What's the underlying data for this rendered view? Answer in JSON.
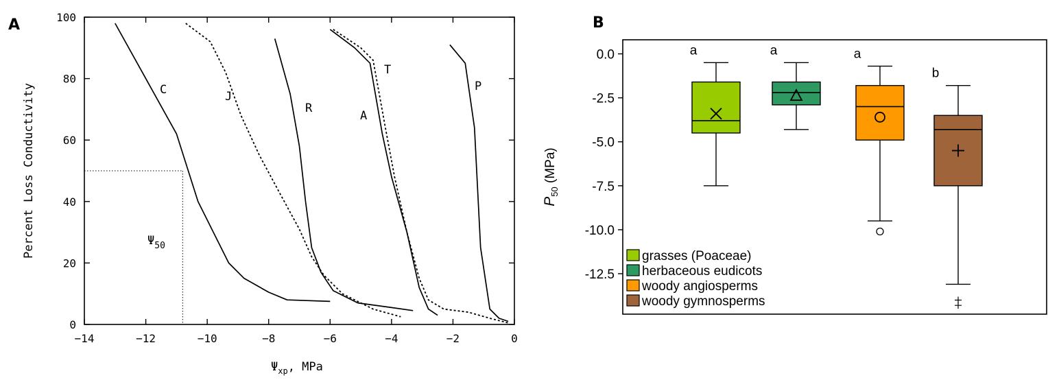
{
  "chart_data": [
    {
      "panel": "A",
      "type": "line",
      "xlabel": "Ψ",
      "xlabel_sub": "xp",
      "xlabel_suffix": ", MPa",
      "ylabel": "Percent Loss Conductivity",
      "xlim": [
        -14,
        0
      ],
      "ylim": [
        0,
        100
      ],
      "xticks": [
        -14,
        -12,
        -10,
        -8,
        -6,
        -4,
        -2,
        0
      ],
      "yticks": [
        0,
        20,
        40,
        60,
        80,
        100
      ],
      "annotation": {
        "text": "Ψ",
        "sub": "50",
        "x": -10.8,
        "y": 50
      },
      "series": [
        {
          "name": "C",
          "style": "solid",
          "x": [
            -13.0,
            -12.0,
            -11.0,
            -10.3,
            -9.8,
            -9.3,
            -8.8,
            -8.0,
            -7.4,
            -6.0
          ],
          "y": [
            98,
            80,
            62,
            40,
            30,
            20,
            15,
            10.5,
            8,
            7.5
          ]
        },
        {
          "name": "J",
          "style": "dotted",
          "x": [
            -10.7,
            -9.9,
            -9.4,
            -8.9,
            -8.3,
            -7.6,
            -7.0,
            -6.6,
            -6.2,
            -5.6,
            -4.6,
            -3.7
          ],
          "y": [
            98,
            92,
            82,
            68,
            55,
            42,
            31,
            22,
            16,
            10,
            5,
            2.5
          ]
        },
        {
          "name": "R",
          "style": "solid",
          "x": [
            -7.8,
            -7.3,
            -7.0,
            -6.8,
            -6.6,
            -6.3,
            -6.1,
            -5.9,
            -5.1,
            -4.0,
            -3.3
          ],
          "y": [
            93,
            75,
            58,
            40,
            25,
            17,
            14,
            11,
            7,
            5.5,
            4.5
          ]
        },
        {
          "name": "A",
          "style": "solid",
          "x": [
            -6.0,
            -5.2,
            -4.7,
            -4.3,
            -4.0,
            -3.5,
            -3.1,
            -2.8,
            -2.5
          ],
          "y": [
            96,
            90,
            85,
            62,
            48,
            30,
            12,
            5,
            3
          ]
        },
        {
          "name": "T",
          "style": "dotted",
          "x": [
            -5.9,
            -5.0,
            -4.6,
            -4.2,
            -3.9,
            -3.5,
            -3.1,
            -2.8,
            -2.3,
            -1.5,
            -0.8,
            -0.2
          ],
          "y": [
            96,
            90,
            86,
            64,
            48,
            30,
            15,
            8,
            5,
            4,
            2,
            0.5
          ]
        },
        {
          "name": "P",
          "style": "solid",
          "x": [
            -2.1,
            -1.6,
            -1.3,
            -1.1,
            -0.8,
            -0.5,
            -0.2
          ],
          "y": [
            91,
            85,
            64,
            25,
            5,
            2,
            1
          ]
        }
      ]
    },
    {
      "panel": "B",
      "type": "box",
      "ylabel": "P",
      "ylabel_sub": "50",
      "ylabel_suffix": " (MPa)",
      "ylim": [
        -14.8,
        0.8
      ],
      "yticks": [
        0.0,
        -2.5,
        -5.0,
        -7.5,
        -10.0,
        -12.5
      ],
      "ytick_labels": [
        "0.0",
        "-2.5",
        "-5.0",
        "-7.5",
        "-10.0",
        "-12.5"
      ],
      "groups": [
        {
          "name": "grasses (Poaceae)",
          "color": "#99cc00",
          "letter": "a",
          "whisker_high": -0.5,
          "q3": -1.6,
          "median": -3.8,
          "q1": -4.5,
          "whisker_low": -7.5,
          "mean": -3.4,
          "mean_marker": "x",
          "outliers": []
        },
        {
          "name": "herbaceous eudicots",
          "color": "#2e9961",
          "letter": "a",
          "whisker_high": -0.5,
          "q3": -1.6,
          "median": -2.2,
          "q1": -2.9,
          "whisker_low": -4.3,
          "mean": -2.4,
          "mean_marker": "triangle",
          "outliers": []
        },
        {
          "name": "woody angiosperms",
          "color": "#ff9900",
          "letter": "a",
          "whisker_high": -0.7,
          "q3": -1.8,
          "median": -3.0,
          "q1": -4.9,
          "whisker_low": -9.5,
          "mean": -3.6,
          "mean_marker": "circle",
          "outliers": [
            {
              "value": -10.1,
              "marker": "circle"
            }
          ]
        },
        {
          "name": "woody gymnosperms",
          "color": "#a0643a",
          "letter": "b",
          "whisker_high": -1.8,
          "q3": -3.5,
          "median": -4.3,
          "q1": -7.5,
          "whisker_low": -13.1,
          "mean": -5.5,
          "mean_marker": "plus",
          "outliers": [
            {
              "value": -14.0,
              "marker": "plus"
            },
            {
              "value": -14.3,
              "marker": "plus"
            }
          ]
        }
      ]
    }
  ]
}
